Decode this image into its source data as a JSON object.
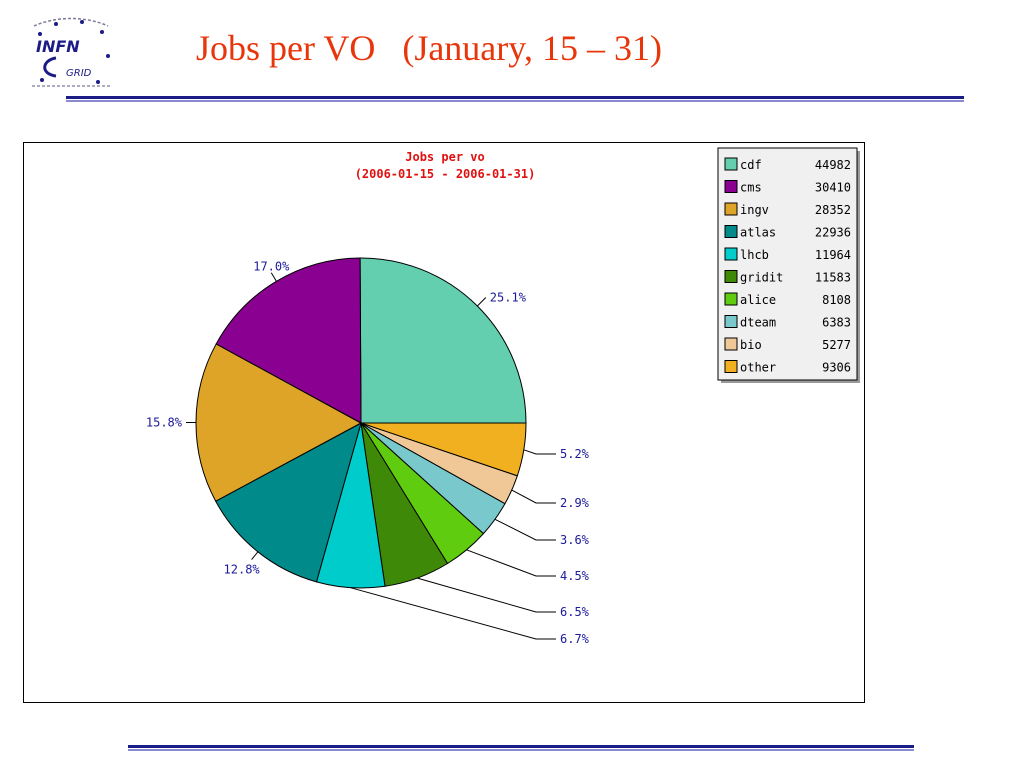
{
  "slide": {
    "title": "Jobs per VO   (January, 15 – 31)",
    "logo_text_top": "INFN",
    "logo_text_bottom": "GRID"
  },
  "chart_data": {
    "type": "pie",
    "title": "Jobs per vo",
    "subtitle": "(2006-01-15 - 2006-01-31)",
    "legend_position": "top-right",
    "slices": [
      {
        "name": "cdf",
        "value": 44982,
        "label": "25.1%",
        "color": "#63cfae"
      },
      {
        "name": "other",
        "value": 9306,
        "label": "5.2%",
        "color": "#f0b020"
      },
      {
        "name": "bio",
        "value": 5277,
        "label": "2.9%",
        "color": "#f0c898"
      },
      {
        "name": "dteam",
        "value": 6383,
        "label": "3.6%",
        "color": "#78c8cc"
      },
      {
        "name": "alice",
        "value": 8108,
        "label": "4.5%",
        "color": "#60cc10"
      },
      {
        "name": "gridit",
        "value": 11583,
        "label": "6.5%",
        "color": "#3e8a08"
      },
      {
        "name": "lhcb",
        "value": 11964,
        "label": "6.7%",
        "color": "#00cccc"
      },
      {
        "name": "atlas",
        "value": 22936,
        "label": "12.8%",
        "color": "#008a8a"
      },
      {
        "name": "ingv",
        "value": 28352,
        "label": "15.8%",
        "color": "#dea428"
      },
      {
        "name": "cms",
        "value": 30410,
        "label": "17.0%",
        "color": "#8a0090"
      }
    ],
    "legend": [
      {
        "name": "cdf",
        "value": "44982",
        "color": "#63cfae"
      },
      {
        "name": "cms",
        "value": "30410",
        "color": "#8a0090"
      },
      {
        "name": "ingv",
        "value": "28352",
        "color": "#dea428"
      },
      {
        "name": "atlas",
        "value": "22936",
        "color": "#008a8a"
      },
      {
        "name": "lhcb",
        "value": "11964",
        "color": "#00cccc"
      },
      {
        "name": "gridit",
        "value": "11583",
        "color": "#3e8a08"
      },
      {
        "name": "alice",
        "value": "8108",
        "color": "#60cc10"
      },
      {
        "name": "dteam",
        "value": "6383",
        "color": "#78c8cc"
      },
      {
        "name": "bio",
        "value": "5277",
        "color": "#f0c898"
      },
      {
        "name": "other",
        "value": "9306",
        "color": "#f0b020"
      }
    ]
  }
}
